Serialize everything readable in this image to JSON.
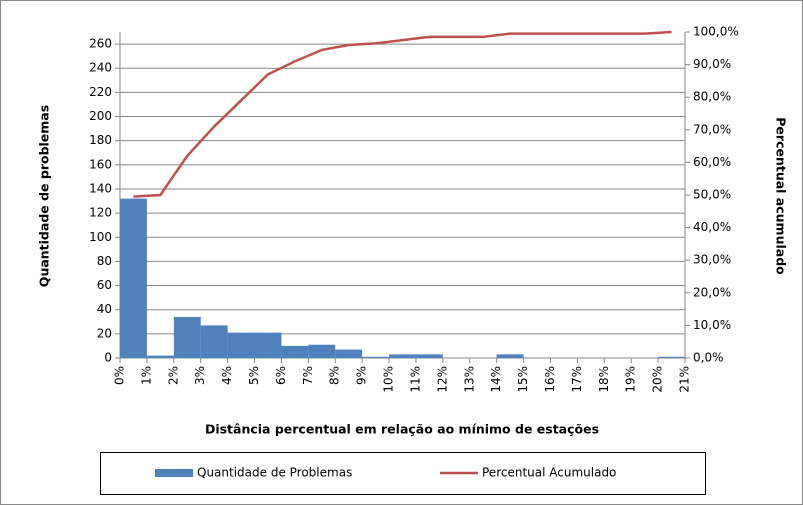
{
  "chart_data": {
    "type": "histogram",
    "x_label": "Distância percentual  em relação ao mínimo de estações",
    "y_label": "Quantidade de problemas",
    "y2_label": "Percentual acumulado",
    "bins": [
      0,
      1,
      2,
      3,
      4,
      5,
      6,
      7,
      8,
      9,
      10,
      11,
      12,
      13,
      14,
      15,
      16,
      17,
      18,
      19,
      20,
      21
    ],
    "xticks": [
      {
        "value": 0,
        "label": "0%"
      },
      {
        "value": 1,
        "label": "1%"
      },
      {
        "value": 2,
        "label": "2%"
      },
      {
        "value": 3,
        "label": "3%"
      },
      {
        "value": 4,
        "label": "4%"
      },
      {
        "value": 5,
        "label": "5%"
      },
      {
        "value": 6,
        "label": "6%"
      },
      {
        "value": 7,
        "label": "7%"
      },
      {
        "value": 8,
        "label": "8%"
      },
      {
        "value": 9,
        "label": "9%"
      },
      {
        "value": 10,
        "label": "10%"
      },
      {
        "value": 11,
        "label": "11%"
      },
      {
        "value": 12,
        "label": "12%"
      },
      {
        "value": 13,
        "label": "13%"
      },
      {
        "value": 14,
        "label": "14%"
      },
      {
        "value": 15,
        "label": "15%"
      },
      {
        "value": 16,
        "label": "16%"
      },
      {
        "value": 17,
        "label": "17%"
      },
      {
        "value": 18,
        "label": "18%"
      },
      {
        "value": 19,
        "label": "19%"
      },
      {
        "value": 20,
        "label": "20%"
      },
      {
        "value": 21,
        "label": "21%"
      }
    ],
    "xlim": [
      0,
      21
    ],
    "ylim": [
      0,
      270
    ],
    "yticks": [
      0,
      20,
      40,
      60,
      80,
      100,
      120,
      140,
      160,
      180,
      200,
      220,
      240,
      260
    ],
    "y2lim": [
      0,
      100
    ],
    "y2ticks": [
      {
        "value": 0,
        "label": "0,0%"
      },
      {
        "value": 10,
        "label": "10,0%"
      },
      {
        "value": 20,
        "label": "20,0%"
      },
      {
        "value": 30,
        "label": "30,0%"
      },
      {
        "value": 40,
        "label": "40,0%"
      },
      {
        "value": 50,
        "label": "50,0%"
      },
      {
        "value": 60,
        "label": "60,0%"
      },
      {
        "value": 70,
        "label": "70,0%"
      },
      {
        "value": 80,
        "label": "80,0%"
      },
      {
        "value": 90,
        "label": "90,0%"
      },
      {
        "value": 100,
        "label": "100,0%"
      }
    ],
    "grid": true,
    "legend": "bottom",
    "series": [
      {
        "name": "Quantidade de Problemas",
        "color": "#4f81bd",
        "values": [
          132,
          2,
          34,
          27,
          21,
          21,
          10,
          11,
          7,
          1,
          3,
          3,
          0,
          0,
          3,
          0,
          0,
          0,
          0,
          0,
          1
        ]
      },
      {
        "name": "Percentual Acumulado",
        "color": "#c0504d",
        "axis": "y2",
        "values": [
          49.5,
          50,
          62,
          71,
          79,
          87,
          91,
          94.5,
          96,
          96.5,
          97.5,
          98.5,
          98.5,
          98.5,
          99.5,
          99.5,
          99.5,
          99.5,
          99.5,
          99.5,
          100
        ]
      }
    ]
  }
}
